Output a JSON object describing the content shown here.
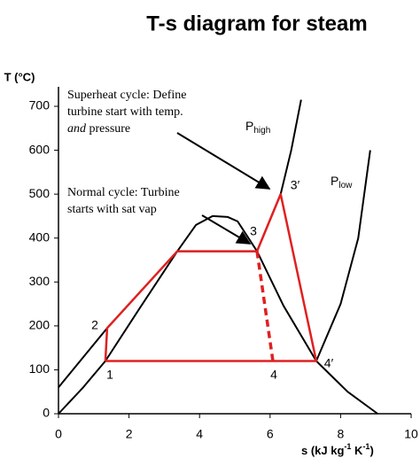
{
  "chart_data": {
    "type": "line",
    "title": "T-s diagram for steam",
    "y_label": "T (°C)",
    "x_label": {
      "parts": [
        "s (kJ kg",
        "-1",
        " K",
        "-1",
        ")"
      ]
    },
    "xlim": [
      0,
      10
    ],
    "xticks": [
      0,
      2,
      4,
      6,
      8,
      10
    ],
    "ylim": [
      0,
      700
    ],
    "yticks": [
      0,
      100,
      200,
      300,
      400,
      500,
      600,
      700
    ],
    "series": [
      {
        "color": "#000000",
        "dash": false,
        "x": [
          0,
          0.7,
          1.33,
          2.3,
          3.37,
          3.9,
          4.37,
          4.8,
          5.08,
          5.63,
          6.38,
          7.31,
          8.2,
          9.05
        ],
        "values": [
          0,
          60,
          120,
          240,
          370,
          430,
          450,
          448,
          438,
          370,
          246,
          120,
          50,
          0
        ]
      },
      {
        "color": "#000000",
        "dash": false,
        "x": [
          0,
          1.38,
          3.37,
          5.63,
          6.3,
          6.6,
          6.88
        ],
        "values": [
          60,
          195,
          370,
          370,
          500,
          600,
          715
        ]
      },
      {
        "color": "#000000",
        "dash": false,
        "x": [
          7.31,
          8.0,
          8.5,
          8.84
        ],
        "values": [
          120,
          250,
          400,
          600
        ]
      },
      {
        "color": "#e02020",
        "dash": false,
        "x": [
          1.33,
          1.38,
          3.37,
          5.63,
          6.3,
          7.31,
          1.33
        ],
        "values": [
          120,
          195,
          370,
          370,
          500,
          120,
          120
        ]
      },
      {
        "color": "#e02020",
        "dash": true,
        "x": [
          5.63,
          6.08
        ],
        "values": [
          370,
          120
        ]
      }
    ],
    "point_labels": [
      "1",
      "2",
      "3",
      "3′",
      "4",
      "4′"
    ],
    "curve_labels": [
      {
        "text": "P",
        "sub": "high"
      },
      {
        "text": "P",
        "sub": "low"
      }
    ],
    "annotations": [
      {
        "lines": [
          "Superheat cycle: Define",
          "turbine start with temp."
        ],
        "italic": "and",
        "rest": " pressure"
      },
      {
        "lines": [
          "Normal cycle: Turbine",
          "starts with sat vap"
        ]
      }
    ]
  }
}
